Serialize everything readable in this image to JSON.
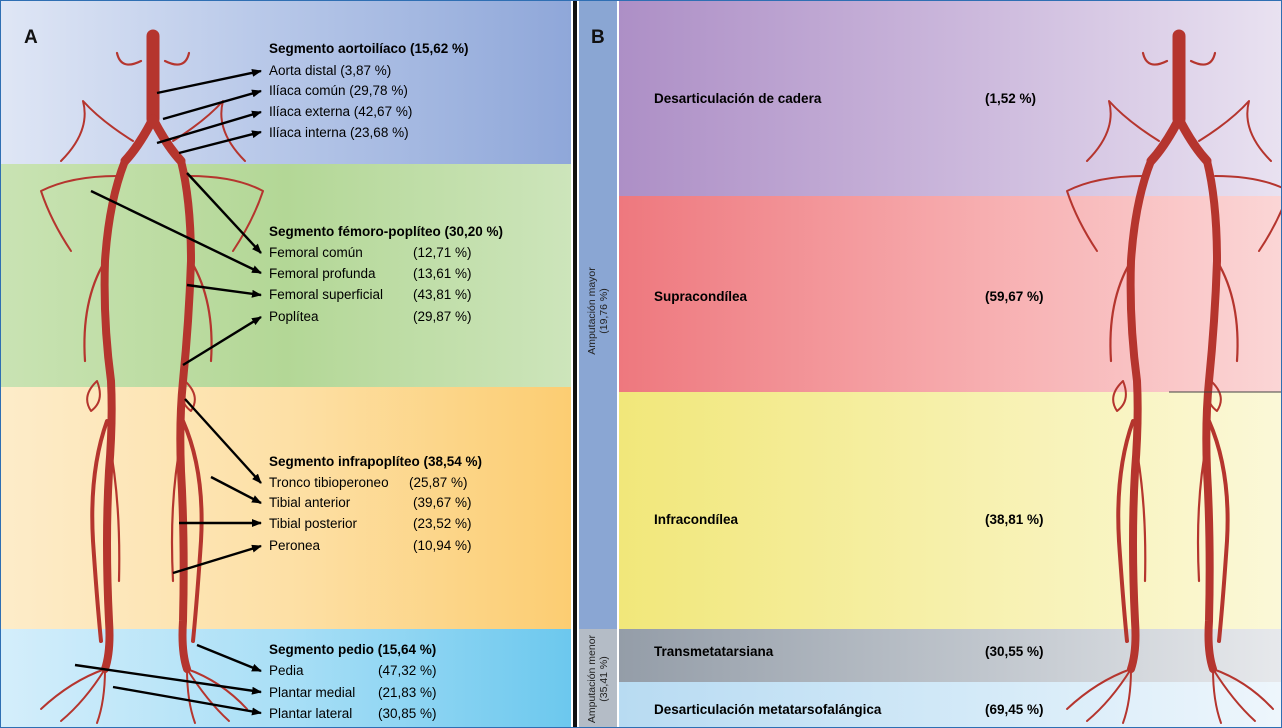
{
  "panel_a": {
    "letter": "A",
    "segments": [
      {
        "title": "Segmento aortoilíaco (15,62 %)",
        "items": [
          {
            "name": "Aorta distal (3,87 %)",
            "pct": ""
          },
          {
            "name": "Ilíaca común (29,78 %)",
            "pct": ""
          },
          {
            "name": "Ilíaca externa (42,67 %)",
            "pct": ""
          },
          {
            "name": "Ilíaca interna (23,68 %)",
            "pct": ""
          }
        ]
      },
      {
        "title": "Segmento fémoro-poplíteo (30,20 %)",
        "items": [
          {
            "name": "Femoral común",
            "pct": "(12,71 %)"
          },
          {
            "name": "Femoral profunda",
            "pct": "(13,61 %)"
          },
          {
            "name": "Femoral superficial",
            "pct": "(43,81 %)"
          },
          {
            "name": "Poplítea",
            "pct": "(29,87 %)"
          }
        ]
      },
      {
        "title": "Segmento infrapoplíteo (38,54 %)",
        "items": [
          {
            "name": "Tronco tibioperoneo",
            "pct": "(25,87 %)"
          },
          {
            "name": "Tibial anterior",
            "pct": "(39,67 %)"
          },
          {
            "name": "Tibial posterior",
            "pct": "(23,52 %)"
          },
          {
            "name": "Peronea",
            "pct": "(10,94 %)"
          }
        ]
      },
      {
        "title": "Segmento pedio (15,64 %)",
        "items": [
          {
            "name": "Pedia",
            "pct": "(47,32 %)"
          },
          {
            "name": "Plantar medial",
            "pct": "(21,83 %)"
          },
          {
            "name": "Plantar lateral",
            "pct": "(30,85 %)"
          }
        ]
      }
    ]
  },
  "panel_b": {
    "letter": "B",
    "groups": [
      {
        "label": "Amputación mayor (19,76 %)"
      },
      {
        "label": "Amputación menor (35,41 %)"
      }
    ],
    "levels": [
      {
        "name": "Desarticulación de cadera",
        "pct": "(1,52 %)"
      },
      {
        "name": "Supracondílea",
        "pct": "(59,67 %)"
      },
      {
        "name": "Infracondílea",
        "pct": "(38,81 %)"
      },
      {
        "name": "Transmetatarsiana",
        "pct": "(30,55 %)"
      },
      {
        "name": "Desarticulación metatarsofalángica",
        "pct": "(69,45 %)"
      }
    ]
  },
  "colors": {
    "artery": "#b5352e",
    "arrow": "#000000",
    "aortoiliac_band": "#9fb3dc",
    "femoropopliteal_band": "#b7d89a",
    "infrapopliteal_band": "#fbd38a",
    "pedal_band": "#8fd3f0",
    "hip_band": "#b99ccc",
    "supracondylar_band": "#f08a8e",
    "infracondylar_band": "#f3ec86",
    "transmetatarsal_band": "#9aa3ad",
    "mtp_band": "#c7e3f5",
    "major_sidebar": "#8aa6d3",
    "minor_sidebar": "#b4bcc6"
  }
}
